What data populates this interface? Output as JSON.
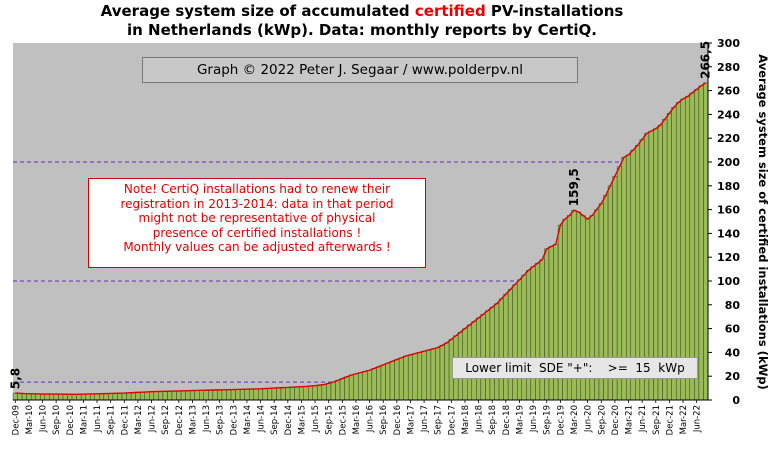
{
  "header": {
    "title_part1": "Average system size of accumulated ",
    "title_highlight": "certified",
    "title_part2": " PV-installations",
    "title_line2": "in Netherlands (kWp). Data: monthly reports by CertiQ."
  },
  "credit": "Graph © 2022 Peter J. Segaar / www.polderpv.nl",
  "note_lines": [
    "Note! CertiQ installations had to renew their",
    "registration in 2013-2014:  data in that period",
    "might not be representative of physical",
    "presence of certified installations  !",
    "Monthly values can be adjusted afterwards !"
  ],
  "lower_limit": "Lower limit  SDE \"+\":    >=  15  kWp",
  "colors": {
    "plot_background": "#c0c0c0",
    "bar_fill": "#9bbb59",
    "bar_outline": "#2a3a10",
    "trend_line": "#e00000",
    "reference_lines": "#6030c0",
    "highlight_text": "#e60000"
  },
  "chart_data": {
    "type": "bar",
    "title": "Average system size of accumulated certified PV-installations in Netherlands (kWp). Data: monthly reports by CertiQ.",
    "xlabel": "",
    "ylabel": "Average system size of certified installations  (kWp)",
    "ylim": [
      0,
      300
    ],
    "yticks": [
      0,
      20,
      40,
      60,
      80,
      100,
      120,
      140,
      160,
      180,
      200,
      220,
      240,
      260,
      280,
      300
    ],
    "y_axis_position": "right",
    "grid": false,
    "reference_lines": [
      15,
      100,
      200
    ],
    "xtick_labels": [
      "Dec-09",
      "Mar-10",
      "Jun-10",
      "Sep-10",
      "Dec-10",
      "Mar-11",
      "Jun-11",
      "Sep-11",
      "Dec-11",
      "Mar-12",
      "Jun-12",
      "Sep-12",
      "Dec-12",
      "Mar-13",
      "Jun-13",
      "Sep-13",
      "Dec-13",
      "Mar-14",
      "Jun-14",
      "Sep-14",
      "Dec-14",
      "Mar-15",
      "Jun-15",
      "Sep-15",
      "Dec-15",
      "Mar-16",
      "Jun-16",
      "Sep-16",
      "Dec-16",
      "Mar-17",
      "Jun-17",
      "Sep-17",
      "Dec-17",
      "Mar-18",
      "Jun-18",
      "Sep-18",
      "Dec-18",
      "Mar-19",
      "Jun-19",
      "Sep-19",
      "Dec-19",
      "Mar-20",
      "Jun-20",
      "Sep-20",
      "Dec-20",
      "Mar-21",
      "Jun-21",
      "Sep-21",
      "Dec-21",
      "Mar-22",
      "Jun-22"
    ],
    "series": [
      {
        "values": [
          5.8,
          5.6,
          5.4,
          5.3,
          5.2,
          5.1,
          5.0,
          5.0,
          5.0,
          5.0,
          4.9,
          4.9,
          4.8,
          4.8,
          4.8,
          4.9,
          5.0,
          5.1,
          5.2,
          5.3,
          5.4,
          5.5,
          5.6,
          5.7,
          5.8,
          6.0,
          6.2,
          6.4,
          6.6,
          6.8,
          7.0,
          7.1,
          7.2,
          7.3,
          7.4,
          7.5,
          7.6,
          7.7,
          7.8,
          7.9,
          8.0,
          8.1,
          8.2,
          8.3,
          8.4,
          8.5,
          8.6,
          8.7,
          8.8,
          8.9,
          9.0,
          9.1,
          9.2,
          9.3,
          9.4,
          9.6,
          9.8,
          10.0,
          10.2,
          10.4,
          10.6,
          10.8,
          11.0,
          11.2,
          11.4,
          11.7,
          12.0,
          12.5,
          13.0,
          14.0,
          15.0,
          16.5,
          18.0,
          19.5,
          21.0,
          22.0,
          23.0,
          24.0,
          25.0,
          26.5,
          28.0,
          29.5,
          31.0,
          32.5,
          34.0,
          35.5,
          37.0,
          38.0,
          39.0,
          40.0,
          41.0,
          42.0,
          43.0,
          44.0,
          46.0,
          48.0,
          51.0,
          54.0,
          57.0,
          60.0,
          63.0,
          66.0,
          69.0,
          72.0,
          75.0,
          78.0,
          81.0,
          85.0,
          89.0,
          93.0,
          97.0,
          101.0,
          105.0,
          109.0,
          112.0,
          115.0,
          118.0,
          127.0,
          129.0,
          131.0,
          147.0,
          152.0,
          155.0,
          159.5,
          158.0,
          155.0,
          152.0,
          155.0,
          160.0,
          165.0,
          172.0,
          180.0,
          188.0,
          196.0,
          204.0,
          206.0,
          210.0,
          214.0,
          219.0,
          224.0,
          226.0,
          228.0,
          231.0,
          236.0,
          241.0,
          246.0,
          250.0,
          253.0,
          255.0,
          258.0,
          261.0,
          264.0,
          266.5
        ]
      }
    ],
    "annotations": [
      "5,8",
      "159,5",
      "266,5"
    ]
  }
}
